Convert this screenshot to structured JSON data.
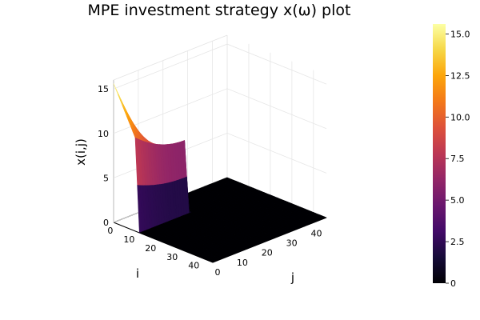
{
  "chart_data": {
    "type": "surface",
    "title": "MPE investment strategy x(ω) plot",
    "xlabel": "i",
    "ylabel": "j",
    "zlabel": "x(i,j)",
    "i_ticks": [
      0,
      10,
      20,
      30,
      40
    ],
    "j_ticks": [
      0,
      10,
      20,
      30,
      40
    ],
    "z_ticks": [
      0,
      5,
      10,
      15
    ],
    "i_range": [
      0,
      46
    ],
    "j_range": [
      0,
      46
    ],
    "z_range": [
      0,
      16
    ],
    "colorbar": {
      "range": [
        0,
        15.6
      ],
      "ticks": [
        "0",
        "2.5",
        "5.0",
        "7.5",
        "10.0",
        "12.5",
        "15.0"
      ],
      "tick_values": [
        0,
        2.5,
        5.0,
        7.5,
        10.0,
        12.5,
        15.0
      ],
      "colormap": "inferno"
    },
    "surface": {
      "description_points": {
        "x_at_i0_j0": 15.6,
        "x_at_i10_j0": 10.5,
        "x_at_i10_j20": 8.0,
        "x_at_i0_j20": 1.3,
        "x_at_i_gt_12": 0,
        "x_at_j_gt_20": 0
      }
    },
    "grid": true,
    "legend": "none"
  }
}
